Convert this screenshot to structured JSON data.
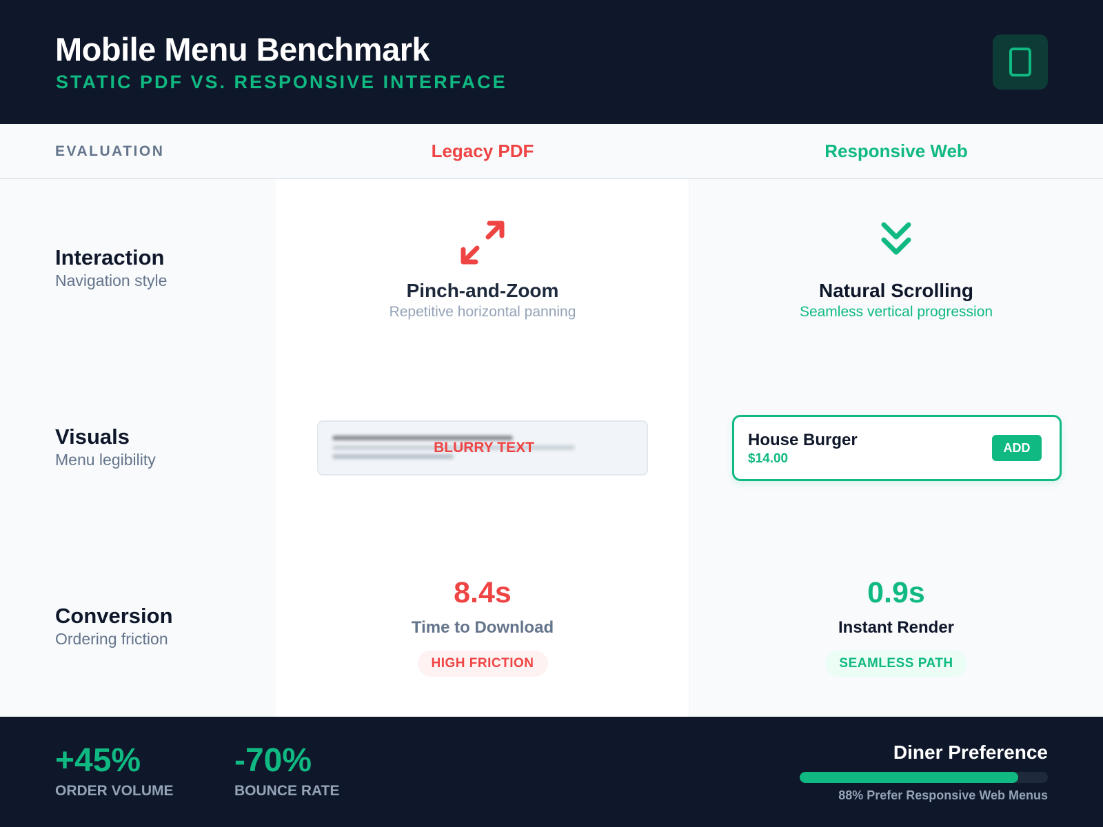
{
  "header": {
    "title": "Mobile Menu Benchmark",
    "subtitle": "STATIC PDF VS. RESPONSIVE INTERFACE",
    "badge_icon": "mobile-phone-icon"
  },
  "columns": {
    "evaluation": "EVALUATION",
    "legacy": "Legacy PDF",
    "responsive": "Responsive Web"
  },
  "colors": {
    "navy": "#0f172a",
    "green": "#10b981",
    "red": "#ef4444",
    "slate": "#64748b"
  },
  "rows": {
    "interaction": {
      "title": "Interaction",
      "subtitle": "Navigation style",
      "legacy": {
        "icon": "expand-arrows-icon",
        "title": "Pinch-and-Zoom",
        "subtitle": "Repetitive horizontal panning"
      },
      "responsive": {
        "icon": "double-chevron-down-icon",
        "title": "Natural Scrolling",
        "subtitle": "Seamless vertical progression"
      }
    },
    "visuals": {
      "title": "Visuals",
      "subtitle": "Menu legibility",
      "legacy": {
        "label": "BLURRY TEXT"
      },
      "responsive": {
        "item_name": "House Burger",
        "item_price": "$14.00",
        "button_label": "ADD"
      }
    },
    "conversion": {
      "title": "Conversion",
      "subtitle": "Ordering friction",
      "legacy": {
        "value": "8.4s",
        "label": "Time to Download",
        "badge": "HIGH FRICTION"
      },
      "responsive": {
        "value": "0.9s",
        "label": "Instant Render",
        "badge": "SEAMLESS PATH"
      }
    }
  },
  "footer": {
    "stats": [
      {
        "value": "+45%",
        "label": "ORDER VOLUME"
      },
      {
        "value": "-70%",
        "label": "BOUNCE RATE"
      }
    ],
    "preference": {
      "title": "Diner Preference",
      "percent": 88,
      "caption": "88% Prefer Responsive Web Menus"
    }
  }
}
